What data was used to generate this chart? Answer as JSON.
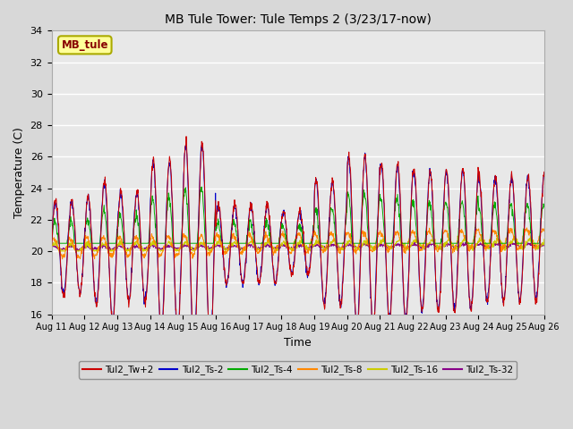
{
  "title": "MB Tule Tower: Tule Temps 2 (3/23/17-now)",
  "xlabel": "Time",
  "ylabel": "Temperature (C)",
  "ylim": [
    16,
    34
  ],
  "yticks": [
    16,
    18,
    20,
    22,
    24,
    26,
    28,
    30,
    32,
    34
  ],
  "xtick_labels": [
    "Aug 11",
    "Aug 12",
    "Aug 13",
    "Aug 14",
    "Aug 15",
    "Aug 16",
    "Aug 17",
    "Aug 18",
    "Aug 19",
    "Aug 20",
    "Aug 21",
    "Aug 22",
    "Aug 23",
    "Aug 24",
    "Aug 25",
    "Aug 26"
  ],
  "annotation_text": "MB_tule",
  "background_color": "#d8d8d8",
  "plot_bg_color": "#e8e8e8",
  "series": {
    "Tul2_Tw+2": {
      "color": "#cc0000"
    },
    "Tul2_Ts-2": {
      "color": "#0000cc"
    },
    "Tul2_Ts-4": {
      "color": "#00aa00"
    },
    "Tul2_Ts-8": {
      "color": "#ff8800"
    },
    "Tul2_Ts-16": {
      "color": "#cccc00"
    },
    "Tul2_Ts-32": {
      "color": "#880088"
    }
  }
}
